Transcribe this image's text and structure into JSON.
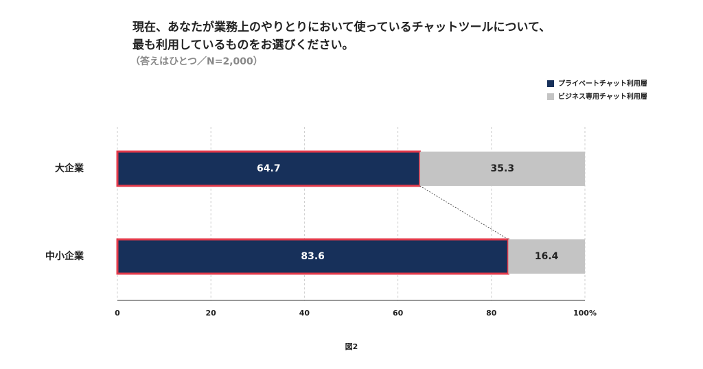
{
  "chart_data": {
    "type": "stacked-bar-horizontal",
    "title": [
      "現在、あなたが業務上のやりとりにおいて使っているチャットツールについて、",
      "最も利用しているものをお選びください。"
    ],
    "subtitle": "（答えはひとつ／N=2,000）",
    "caption": "図2",
    "categories": [
      "大企業",
      "中小企業"
    ],
    "series": [
      {
        "name": "プライベートチャット利用層",
        "color": "#17305a",
        "values": [
          64.7,
          83.6
        ]
      },
      {
        "name": "ビジネス専用チャット利用層",
        "color": "#c4c4c4",
        "values": [
          35.3,
          16.4
        ]
      }
    ],
    "xlim": [
      0,
      100
    ],
    "xticks": [
      0,
      20,
      40,
      60,
      80,
      {
        "value": 100,
        "label": "100%"
      }
    ],
    "grid": true,
    "legend": "top-right"
  }
}
